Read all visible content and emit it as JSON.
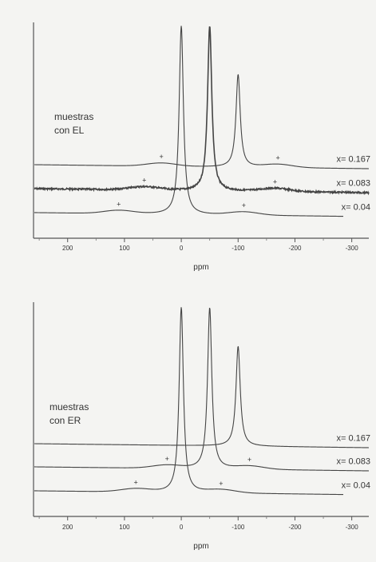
{
  "chart_data": [
    {
      "type": "line",
      "panel": "top",
      "annotation_lines": [
        "muestras",
        "con EL"
      ],
      "xlabel": "ppm",
      "x_ticks": [
        "200",
        "100",
        "0",
        "-100",
        "-200",
        "-300"
      ],
      "x_tick_values": [
        200,
        100,
        0,
        -100,
        -200,
        -300
      ],
      "xlim": [
        260,
        -330
      ],
      "series": [
        {
          "name": "x= 0.167",
          "peak_ppm": -100,
          "baseline": 3,
          "peak_height": 44,
          "noise": 0,
          "sidebands_ppm": [
            35,
            -170
          ]
        },
        {
          "name": "x= 0.083",
          "peak_ppm": -50,
          "baseline": 2,
          "peak_height": 55,
          "noise": 0.9,
          "sidebands_ppm": [
            65,
            -165
          ]
        },
        {
          "name": "x= 0.04",
          "peak_ppm": 0,
          "baseline": 1,
          "peak_height": 65,
          "noise": 0,
          "sidebands_ppm": [
            110,
            -110
          ]
        }
      ]
    },
    {
      "type": "line",
      "panel": "bottom",
      "annotation_lines": [
        "muestras",
        "con ER"
      ],
      "xlabel": "ppm",
      "x_ticks": [
        "200",
        "100",
        "0",
        "-100",
        "-200",
        "-300"
      ],
      "x_tick_values": [
        200,
        100,
        0,
        -100,
        -200,
        -300
      ],
      "xlim": [
        260,
        -330
      ],
      "series": [
        {
          "name": "x= 0.167",
          "peak_ppm": -100,
          "baseline": 3,
          "peak_height": 44,
          "noise": 0,
          "sidebands_ppm": []
        },
        {
          "name": "x= 0.083",
          "peak_ppm": -50,
          "baseline": 2,
          "peak_height": 55,
          "noise": 0,
          "sidebands_ppm": [
            25,
            -120
          ]
        },
        {
          "name": "x= 0.04",
          "peak_ppm": 0,
          "baseline": 1,
          "peak_height": 65,
          "noise": 0,
          "sidebands_ppm": [
            80,
            -70
          ]
        }
      ]
    }
  ]
}
